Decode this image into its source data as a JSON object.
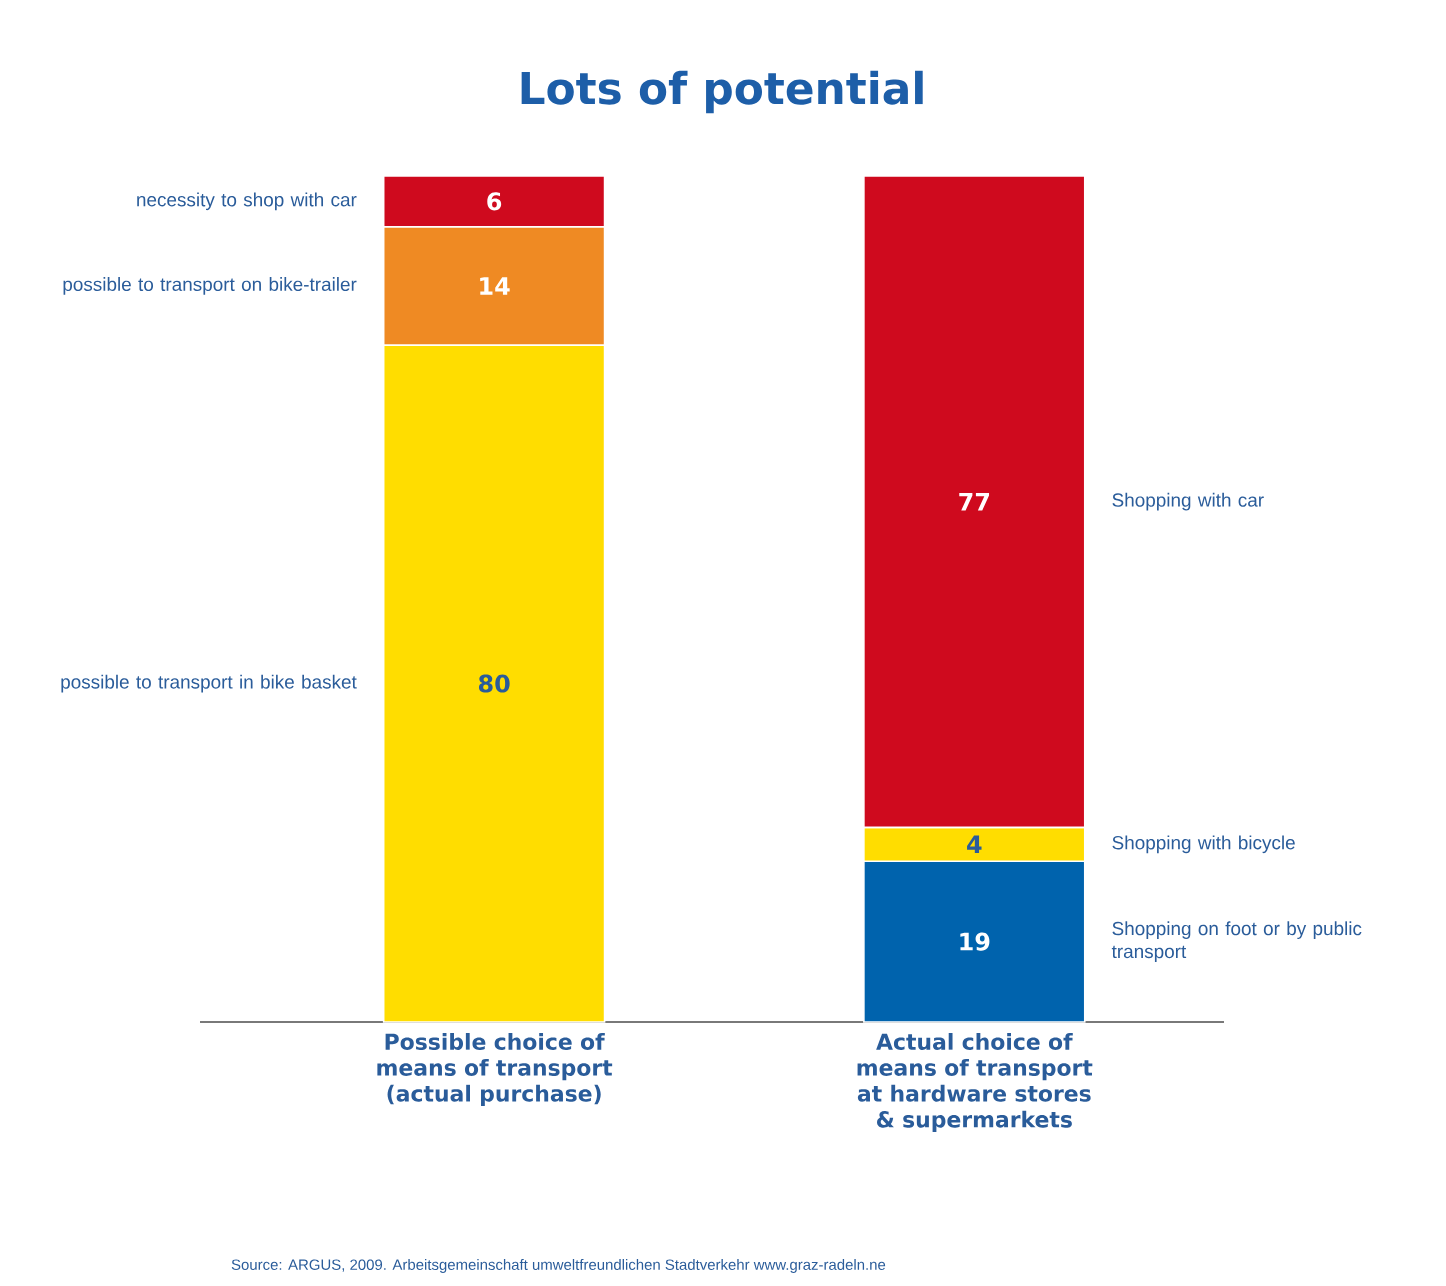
{
  "chart_data": {
    "type": "bar",
    "stacked": true,
    "data_labels": true,
    "title": "Lots of potential",
    "categories": [
      "Possible choice of means of transport (actual purchase)",
      "Actual choice of means of transport at hardware stores & supermarkets"
    ],
    "series": [
      {
        "name": "possible to transport in bike basket",
        "color": "#ffdd00",
        "values": [
          80,
          null
        ]
      },
      {
        "name": "possible to transport on bike-trailer",
        "color": "#ef8a23",
        "values": [
          14,
          null
        ]
      },
      {
        "name": "necessity to shop with car",
        "color": "#cf0a1e",
        "values": [
          6,
          null
        ]
      },
      {
        "name": "Shopping on foot or by public transport",
        "color": "#0063ad",
        "values": [
          null,
          19
        ]
      },
      {
        "name": "Shopping with bicycle",
        "color": "#ffdd00",
        "values": [
          null,
          4
        ]
      },
      {
        "name": "Shopping with car",
        "color": "#cf0a1e",
        "values": [
          null,
          77
        ]
      }
    ],
    "annotations": [
      "Source: ARGUS, 2009. Arbeitsgemeinschaft umweltfreundlichen Stadtverkehr www.graz-radeln.ne"
    ]
  }
}
